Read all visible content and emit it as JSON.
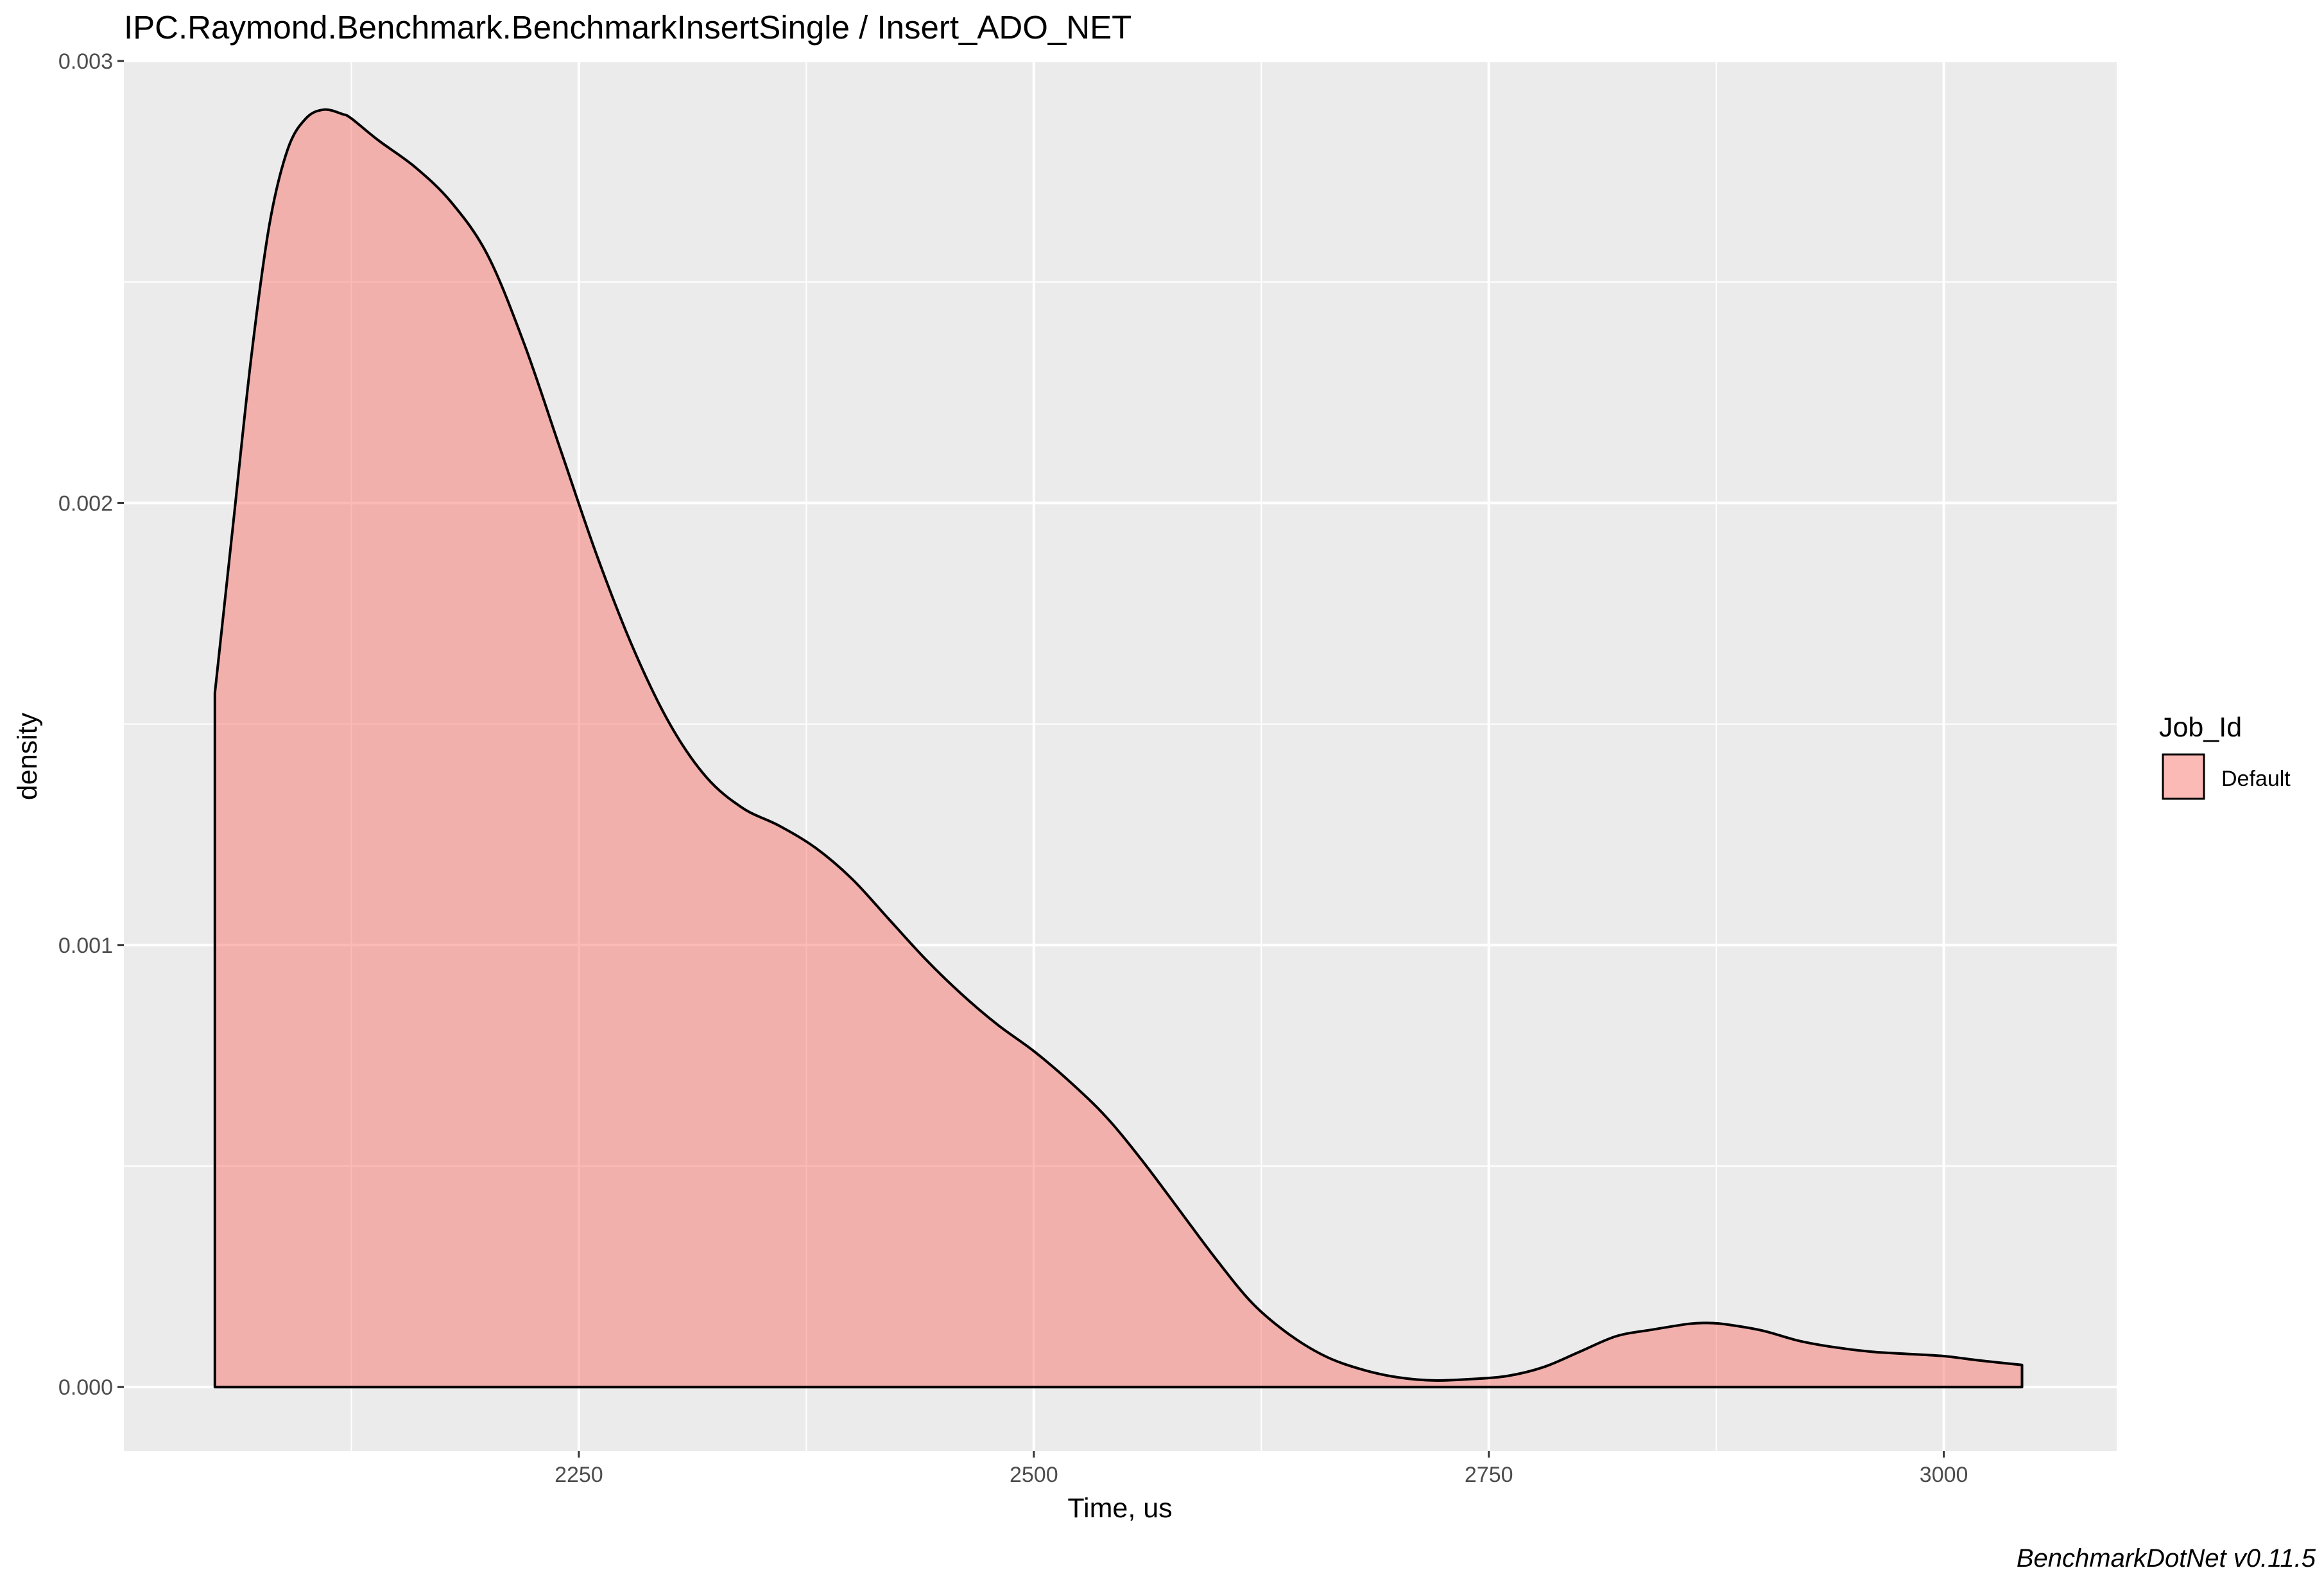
{
  "chart_data": {
    "type": "area",
    "title": "IPC.Raymond.Benchmark.BenchmarkInsertSingle / Insert_ADO_NET",
    "xlabel": "Time, us",
    "ylabel": "density",
    "caption": "BenchmarkDotNet v0.11.5",
    "xlim": [
      2000,
      3095
    ],
    "ylim": [
      -0.000145,
      0.003
    ],
    "x_ticks": [
      2250,
      2500,
      2750,
      3000
    ],
    "x_tick_labels": [
      "2250",
      "2500",
      "2750",
      "3000"
    ],
    "y_ticks": [
      0,
      0.001,
      0.002,
      0.003
    ],
    "y_tick_labels": [
      "0.000",
      "0.001",
      "0.002",
      "0.003"
    ],
    "grid": true,
    "legend": {
      "title": "Job_Id",
      "position": "right",
      "entries": [
        "Default"
      ]
    },
    "colors": {
      "fill": "#f8766d",
      "fill_opacity": 0.5,
      "line": "#000000",
      "panel": "#ebebeb",
      "grid": "#ffffff"
    },
    "series": [
      {
        "name": "Default",
        "x": [
          2050,
          2060,
          2070,
          2080,
          2090,
          2100,
          2110,
          2120,
          2125,
          2140,
          2160,
          2180,
          2200,
          2220,
          2240,
          2260,
          2280,
          2300,
          2320,
          2340,
          2360,
          2380,
          2400,
          2420,
          2440,
          2460,
          2480,
          2500,
          2520,
          2540,
          2560,
          2580,
          2600,
          2620,
          2640,
          2660,
          2680,
          2700,
          2720,
          2740,
          2760,
          2780,
          2800,
          2820,
          2840,
          2860,
          2870,
          2880,
          2900,
          2920,
          2940,
          2960,
          2980,
          3000,
          3020,
          3043
        ],
        "y": [
          0.00157,
          0.00195,
          0.00233,
          0.00263,
          0.0028,
          0.00287,
          0.00289,
          0.00288,
          0.00287,
          0.00282,
          0.00276,
          0.00268,
          0.00256,
          0.00236,
          0.00212,
          0.00188,
          0.00167,
          0.0015,
          0.00138,
          0.00131,
          0.00127,
          0.00122,
          0.00115,
          0.00106,
          0.00097,
          0.00089,
          0.00082,
          0.00076,
          0.00069,
          0.00061,
          0.00051,
          0.0004,
          0.00029,
          0.00019,
          0.00012,
          7e-05,
          4e-05,
          2.2e-05,
          1.5e-05,
          1.8e-05,
          2.5e-05,
          4.5e-05,
          8e-05,
          0.000115,
          0.00013,
          0.000143,
          0.000145,
          0.000142,
          0.000128,
          0.000105,
          9e-05,
          8e-05,
          7.5e-05,
          7e-05,
          6e-05,
          5e-05
        ]
      }
    ]
  }
}
